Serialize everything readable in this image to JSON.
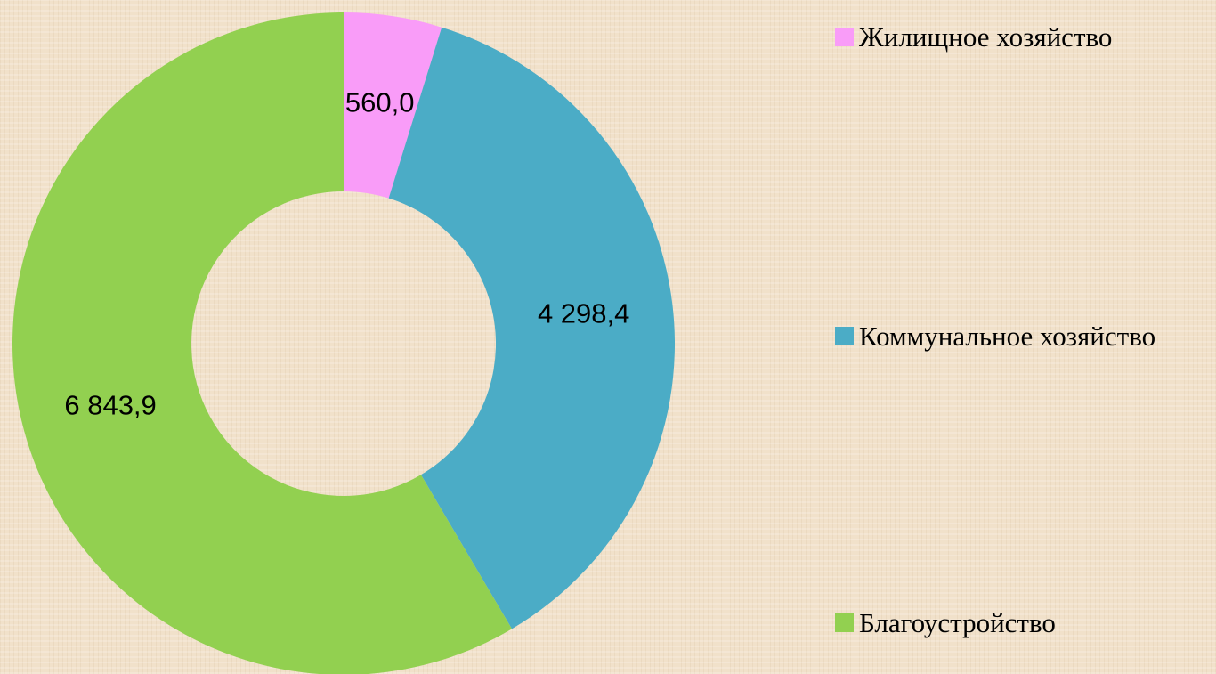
{
  "chart_data": {
    "type": "donut",
    "categories": [
      "Жилищное хозяйство",
      "Коммунальное хозяйство",
      "Благоустройство"
    ],
    "values": [
      560.0,
      4298.4,
      6843.9
    ],
    "value_labels": [
      "560,0",
      "4 298,4",
      "6 843,9"
    ],
    "colors": [
      "#f99cf8",
      "#4bacc6",
      "#92d050"
    ],
    "legend": "right"
  }
}
